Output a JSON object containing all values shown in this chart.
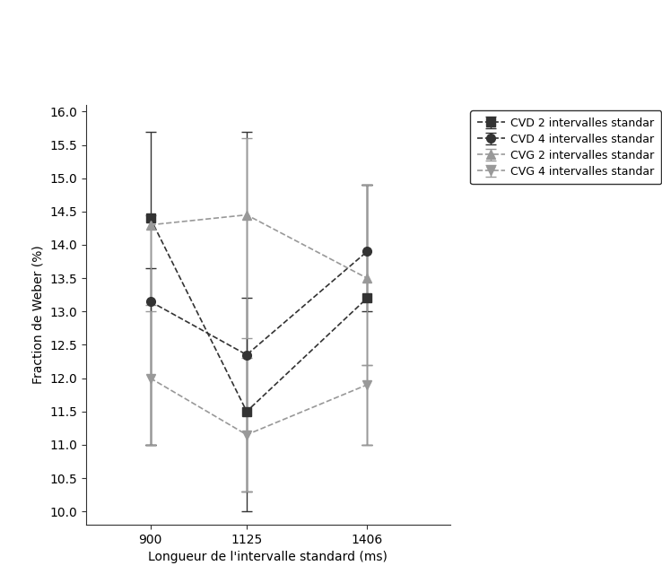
{
  "x": [
    900,
    1125,
    1406
  ],
  "error_data": {
    "CVD 2": {
      "values": [
        14.4,
        11.5,
        13.2
      ],
      "upper": [
        1.3,
        4.2,
        1.7
      ],
      "lower": [
        3.4,
        1.5,
        2.2
      ]
    },
    "CVD 4": {
      "values": [
        13.15,
        12.35,
        13.9
      ],
      "upper": [
        0.5,
        0.85,
        1.0
      ],
      "lower": [
        2.15,
        2.05,
        0.9
      ]
    },
    "CVG 2": {
      "values": [
        14.3,
        14.45,
        13.5
      ],
      "upper": [
        0.15,
        1.15,
        1.4
      ],
      "lower": [
        1.2,
        1.85,
        1.3
      ]
    },
    "CVG 4": {
      "values": [
        12.0,
        11.15,
        11.9
      ],
      "upper": [
        1.0,
        1.15,
        0.3
      ],
      "lower": [
        1.0,
        0.85,
        0.9
      ]
    }
  },
  "series_configs": [
    {
      "key": "CVD 2",
      "label": "CVD 2 intervalles standar",
      "color": "#333333",
      "linestyle": "--",
      "marker": "s",
      "markersize": 7
    },
    {
      "key": "CVD 4",
      "label": "CVD 4 intervalles standar",
      "color": "#333333",
      "linestyle": "--",
      "marker": "o",
      "markersize": 7
    },
    {
      "key": "CVG 2",
      "label": "CVG 2 intervalles standar",
      "color": "#999999",
      "linestyle": "--",
      "marker": "^",
      "markersize": 7
    },
    {
      "key": "CVG 4",
      "label": "CVG 4 intervalles standar",
      "color": "#999999",
      "linestyle": "--",
      "marker": "v",
      "markersize": 7
    }
  ],
  "xlabel": "Longueur de l'intervalle standard (ms)",
  "ylabel": "Fraction de Weber (%)",
  "ylim": [
    9.8,
    16.1
  ],
  "yticks": [
    10.0,
    10.5,
    11.0,
    11.5,
    12.0,
    12.5,
    13.0,
    13.5,
    14.0,
    14.5,
    15.0,
    15.5,
    16.0
  ],
  "xticks": [
    900,
    1125,
    1406
  ],
  "xlim": [
    750,
    1600
  ],
  "background_color": "#ffffff"
}
